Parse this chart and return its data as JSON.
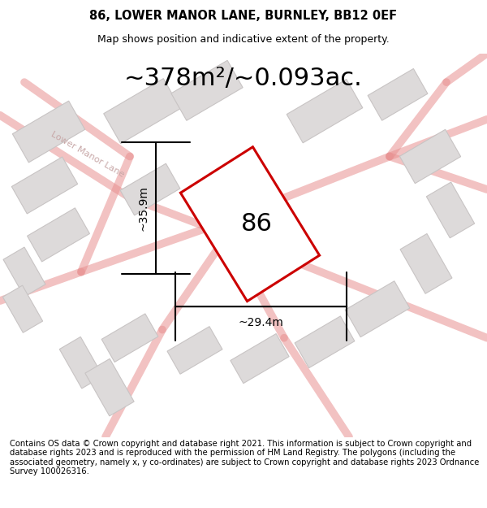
{
  "title": "86, LOWER MANOR LANE, BURNLEY, BB12 0EF",
  "subtitle": "Map shows position and indicative extent of the property.",
  "area_text": "~378m²/~0.093ac.",
  "width_label": "~29.4m",
  "height_label": "~35.9m",
  "house_number": "86",
  "footer": "Contains OS data © Crown copyright and database right 2021. This information is subject to Crown copyright and database rights 2023 and is reproduced with the permission of HM Land Registry. The polygons (including the associated geometry, namely x, y co-ordinates) are subject to Crown copyright and database rights 2023 Ordnance Survey 100026316.",
  "bg_color": "#ffffff",
  "map_bg": "#f2f0f0",
  "road_color": "#e89090",
  "building_color": "#dddada",
  "building_edge": "#c8c4c4",
  "highlight_color": "#cc0000",
  "title_fontsize": 10.5,
  "subtitle_fontsize": 9,
  "area_fontsize": 22,
  "label_fontsize": 10,
  "footer_fontsize": 7.2,
  "road_label_color": "#c8a8a8",
  "road_label_fontsize": 8
}
